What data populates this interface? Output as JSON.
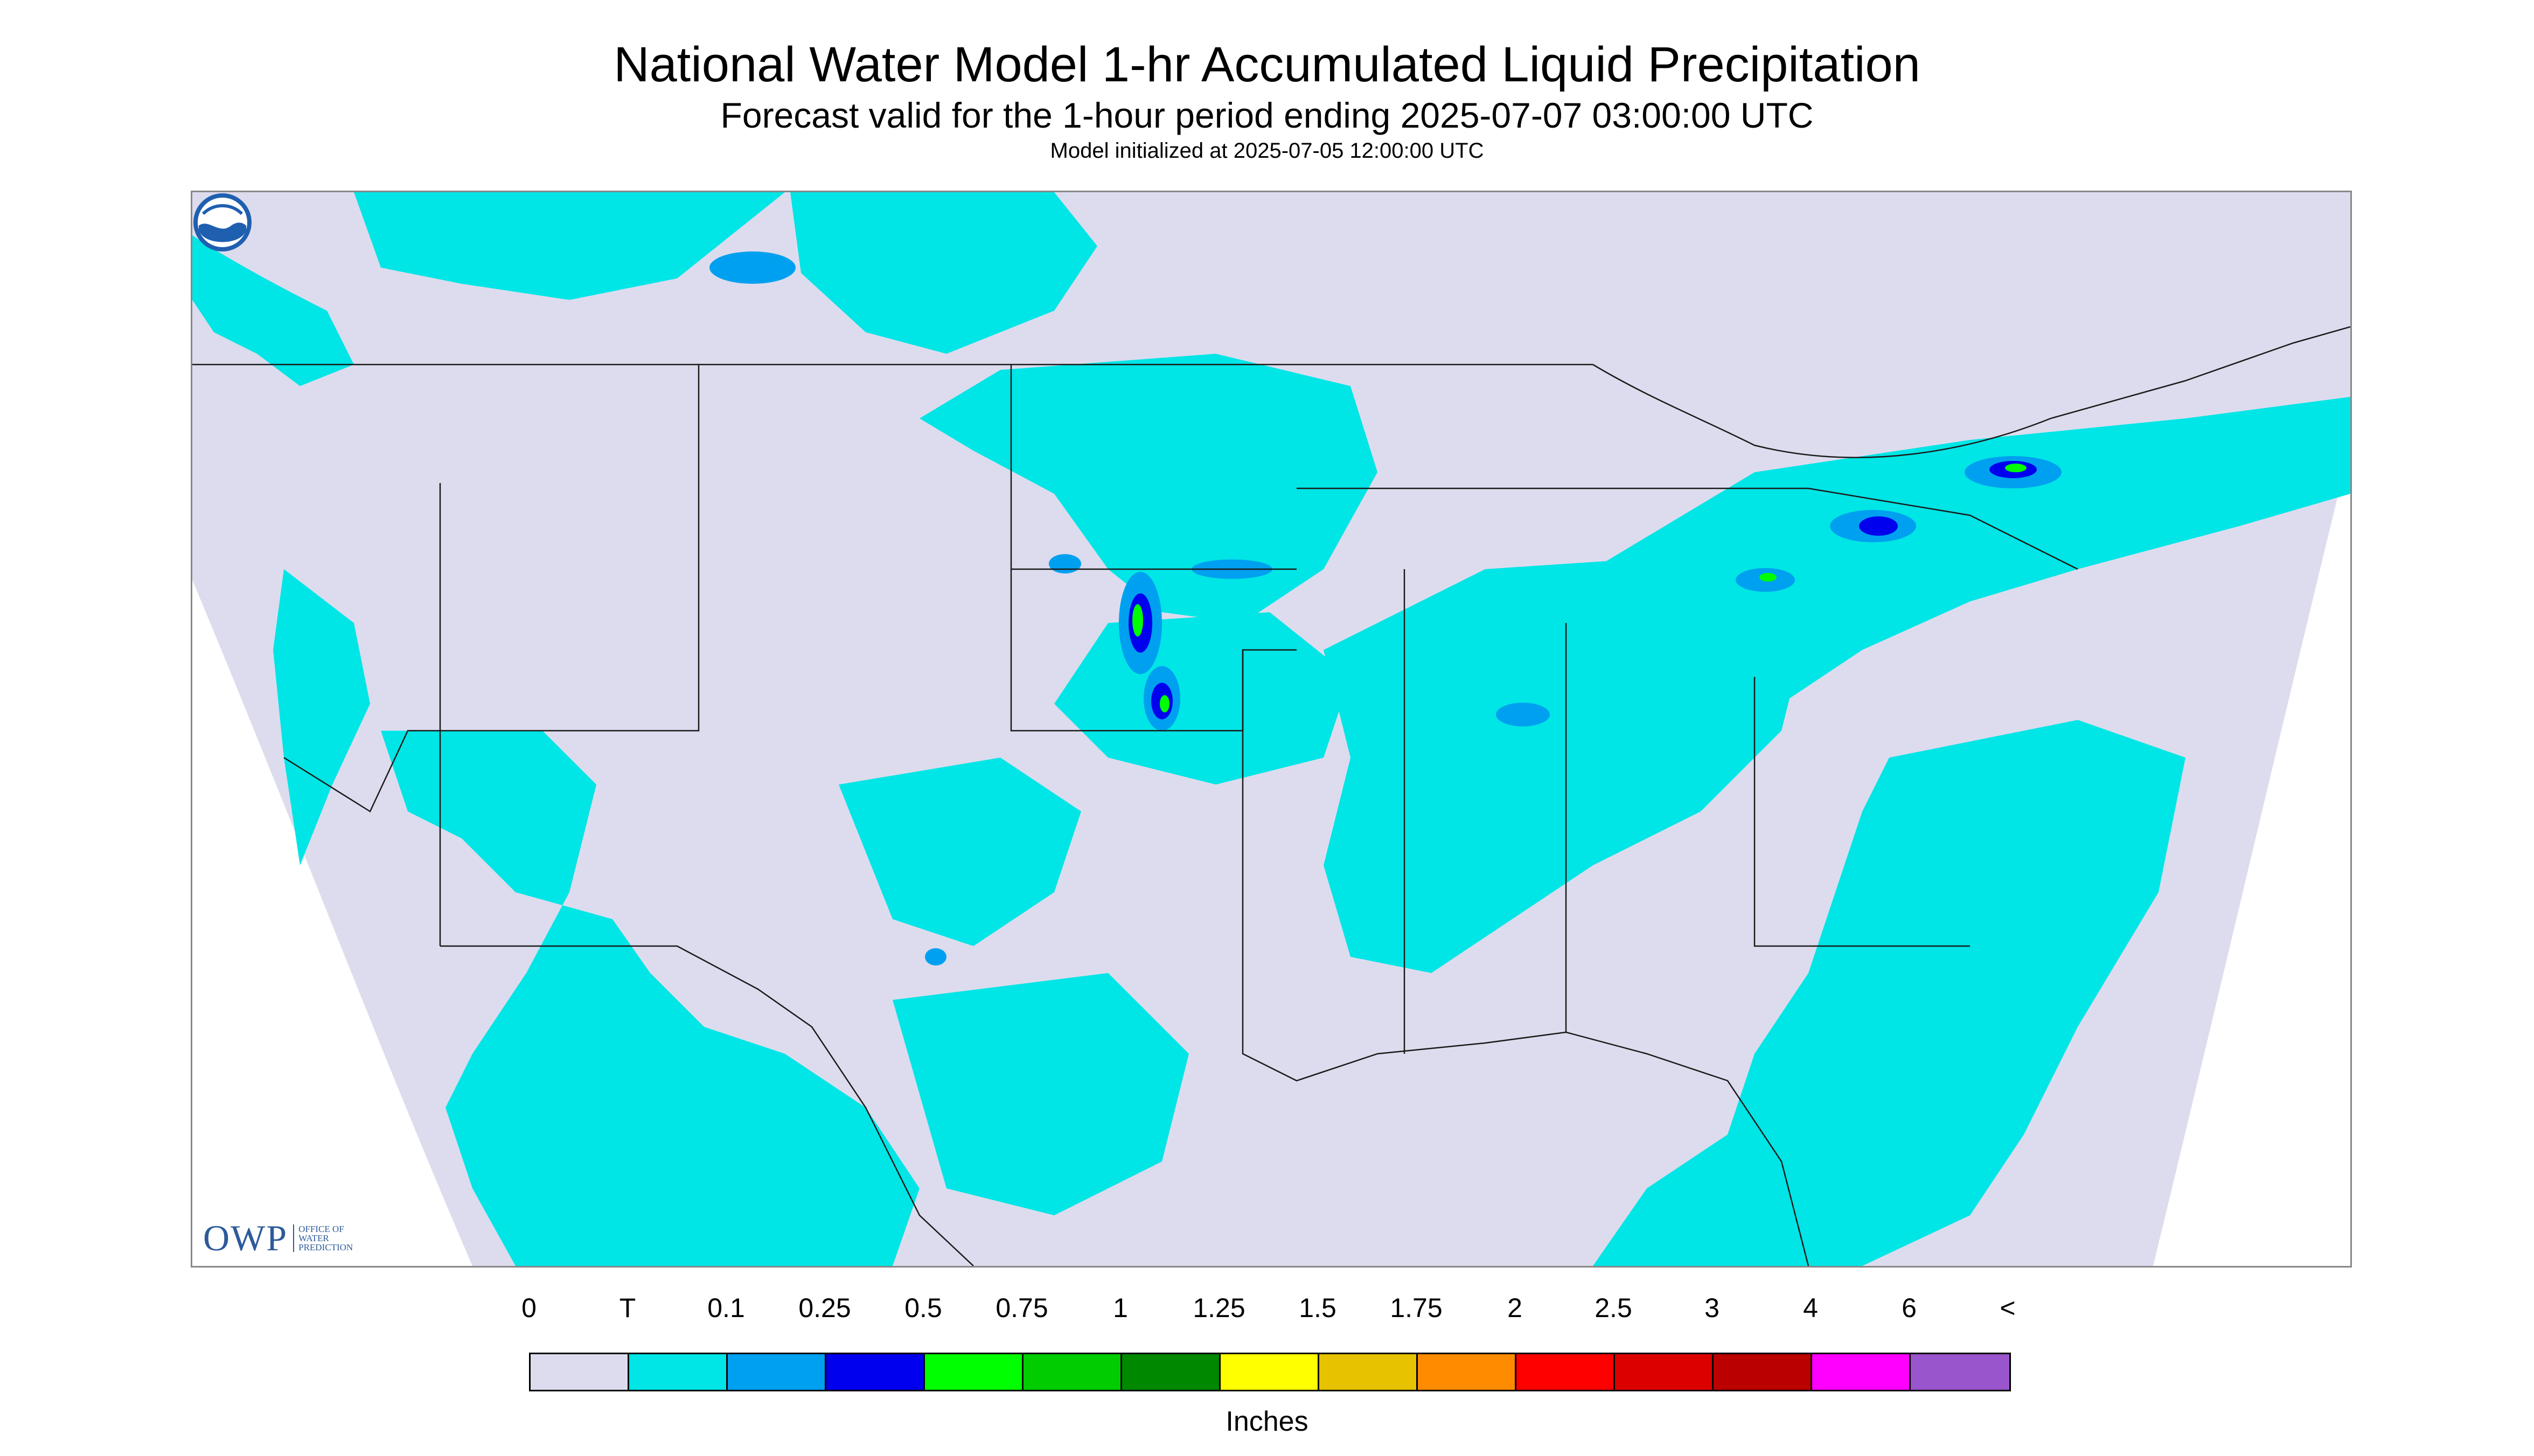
{
  "title": "National Water Model 1-hr Accumulated Liquid Precipitation",
  "subtitle": "Forecast valid for the 1-hour period ending 2025-07-07 03:00:00 UTC",
  "initialized": "Model initialized at 2025-07-05 12:00:00 UTC",
  "logos": {
    "left_mark": "OWP",
    "left_text": "OFFICE OF\nWATER\nPREDICTION",
    "right": "NOAA"
  },
  "colors": {
    "no_data": "#dcdcee",
    "land_outline": "#1a1a1a",
    "trace": "#00e5e5"
  },
  "legend": {
    "labels": [
      "0",
      "T",
      "0.1",
      "0.25",
      "0.5",
      "0.75",
      "1",
      "1.25",
      "1.5",
      "1.75",
      "2",
      "2.5",
      "3",
      "4",
      "6",
      "<"
    ],
    "colors": [
      "#dcdcee",
      "#00e5e5",
      "#00a0f0",
      "#0000ee",
      "#00ff00",
      "#00cc00",
      "#008800",
      "#ffff00",
      "#e6c200",
      "#ff8c00",
      "#ff0000",
      "#dd0000",
      "#bb0000",
      "#ff00ff",
      "#9955cc"
    ],
    "units": "Inches"
  }
}
